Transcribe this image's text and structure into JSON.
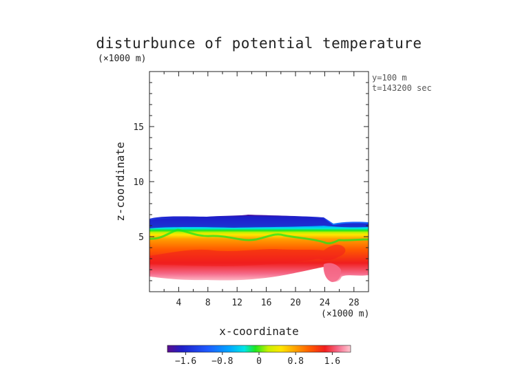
{
  "chart_data": {
    "type": "heatmap",
    "title": "disturbunce of potential temperature",
    "xlabel": "x-coordinate",
    "ylabel": "z-coordinate",
    "x_unit_label": "(×1000 m)",
    "y_unit_label": "(×1000 m)",
    "annotations": [
      "y=100 m",
      "t=143200 sec"
    ],
    "xlim": [
      0,
      30
    ],
    "ylim": [
      0,
      20
    ],
    "x_ticks": [
      4,
      8,
      12,
      16,
      20,
      24,
      28
    ],
    "y_ticks": [
      5,
      10,
      15
    ],
    "grid": false,
    "colorbar": {
      "min": -2.0,
      "max": 2.0,
      "ticks": [
        -1.6,
        -0.8,
        0,
        0.8,
        1.6
      ],
      "tick_labels": [
        "−1.6",
        "−0.8",
        "0",
        "0.8",
        "1.6"
      ],
      "colors": [
        "#5a0d8c",
        "#1f1fc8",
        "#1e5aff",
        "#00a8ff",
        "#00e6e6",
        "#1ee61e",
        "#c8f000",
        "#ffe600",
        "#ffa000",
        "#ff5a00",
        "#f01e1e",
        "#f56a8a",
        "#ffc8d2"
      ]
    },
    "field": {
      "description_layers": [
        {
          "name": "cold upper layer",
          "value_range": [
            -2.0,
            -0.5
          ],
          "z_top_profile_x": [
            0,
            2,
            6,
            10,
            14,
            18,
            22,
            24,
            26,
            30
          ],
          "z_top_profile_z": [
            6.8,
            6.9,
            6.9,
            7.0,
            7.1,
            7.0,
            6.9,
            6.4,
            6.5,
            6.4
          ]
        },
        {
          "name": "transition",
          "value_range": [
            -0.5,
            0.4
          ],
          "z_center_profile_x": [
            0,
            2,
            4,
            6,
            10,
            14,
            18,
            22,
            24,
            26,
            28,
            30
          ],
          "z_center_profile_z": [
            4.8,
            5.0,
            5.7,
            5.3,
            5.1,
            5.4,
            5.3,
            5.0,
            4.7,
            4.9,
            5.0,
            5.0
          ]
        },
        {
          "name": "warm lower layer",
          "value_range": [
            0.5,
            2.0
          ],
          "z_bottom_profile_x": [
            0,
            4,
            8,
            12,
            16,
            20,
            23,
            24,
            26,
            28,
            30
          ],
          "z_bottom_profile_z": [
            1.5,
            1.3,
            1.2,
            1.4,
            1.6,
            2.0,
            2.5,
            1.6,
            1.3,
            1.8,
            1.8
          ]
        }
      ]
    }
  }
}
